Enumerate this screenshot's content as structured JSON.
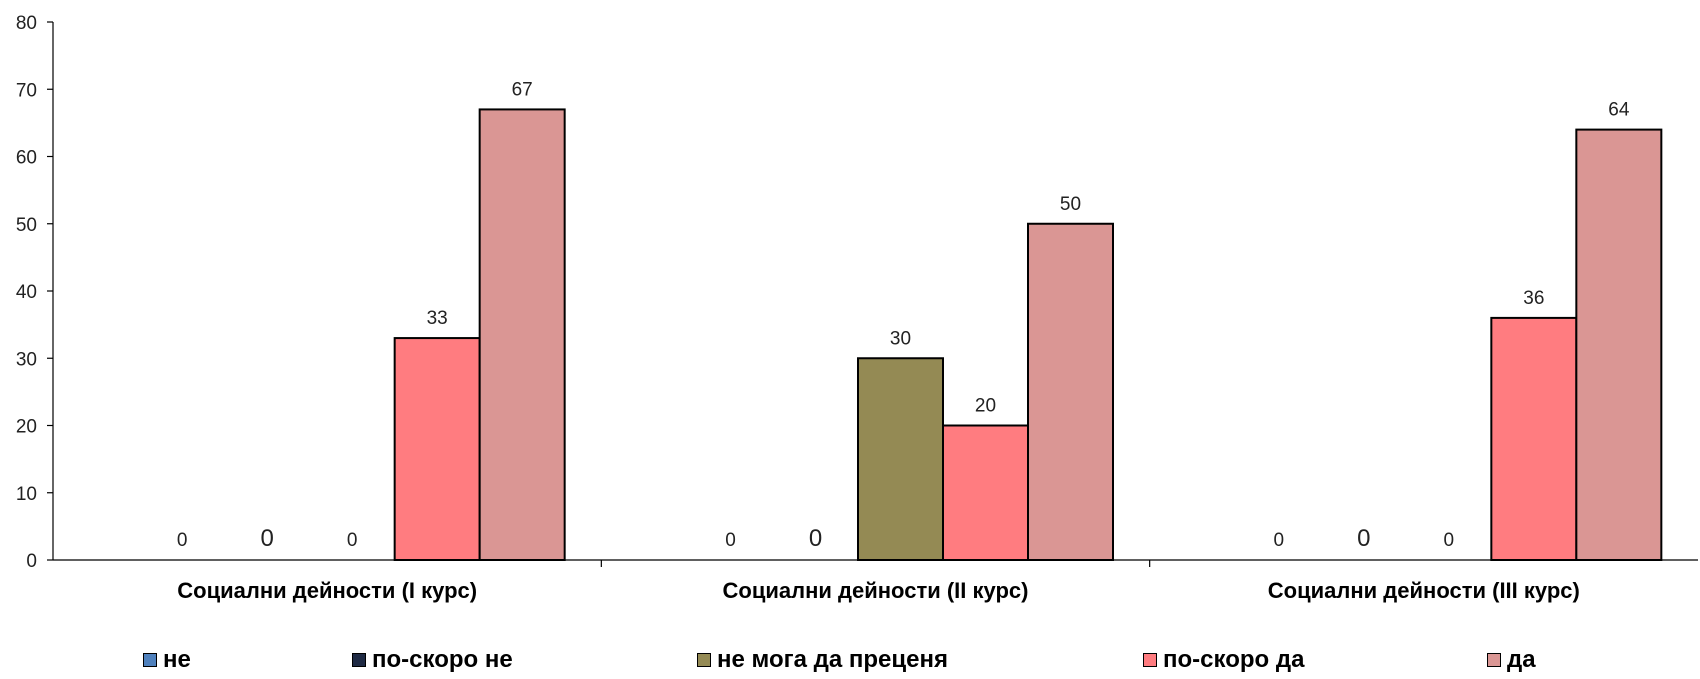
{
  "chart_data": {
    "type": "bar",
    "categories": [
      "Социални дейности (I курс)",
      "Социални дейности (II курс)",
      "Социални дейности (III курс)"
    ],
    "series": [
      {
        "name": "не",
        "values": [
          0,
          0,
          0
        ],
        "color": "#4f81bd",
        "labels": [
          "0",
          "0",
          "0"
        ]
      },
      {
        "name": "по-скоро не",
        "values": [
          0,
          0,
          0
        ],
        "color": "#1f2a44",
        "labels": [
          "0",
          "0",
          "0"
        ]
      },
      {
        "name": "не мога да преценя",
        "values": [
          0,
          30,
          0
        ],
        "color": "#948a54",
        "labels": [
          "0",
          "30",
          "0"
        ]
      },
      {
        "name": "по-скоро да",
        "values": [
          33,
          20,
          36
        ],
        "color": "#ff7c80",
        "labels": [
          "33",
          "20",
          "36"
        ]
      },
      {
        "name": "да",
        "values": [
          67,
          50,
          64
        ],
        "color": "#da9694",
        "labels": [
          "67",
          "50",
          "64"
        ]
      }
    ],
    "ylim": [
      0,
      80
    ],
    "yticks": [
      0,
      10,
      20,
      30,
      40,
      50,
      60,
      70,
      80
    ],
    "legend_position": "bottom",
    "grid": false,
    "title": "",
    "xlabel": "",
    "ylabel": ""
  }
}
